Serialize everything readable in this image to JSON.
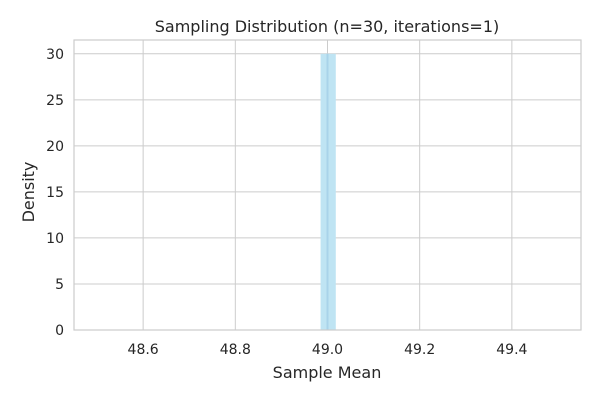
{
  "chart_data": {
    "type": "bar",
    "title": "Sampling Distribution (n=30, iterations=1)",
    "xlabel": "Sample Mean",
    "ylabel": "Density",
    "xlim": [
      48.45,
      49.55
    ],
    "ylim": [
      0,
      31.5
    ],
    "xticks": [
      48.6,
      48.8,
      49.0,
      49.2,
      49.4
    ],
    "yticks": [
      0,
      5,
      10,
      15,
      20,
      25,
      30
    ],
    "grid": true,
    "bars": [
      {
        "x_start": 48.985,
        "x_end": 49.018,
        "value": 30
      }
    ],
    "mean_line": {
      "x": 49.0
    },
    "colors": {
      "bar_fill": "#bfe4f3",
      "mean_line": "#a9d3ea",
      "grid": "#cccccc",
      "axes_spine": "#cccccc",
      "text": "#262626"
    }
  }
}
